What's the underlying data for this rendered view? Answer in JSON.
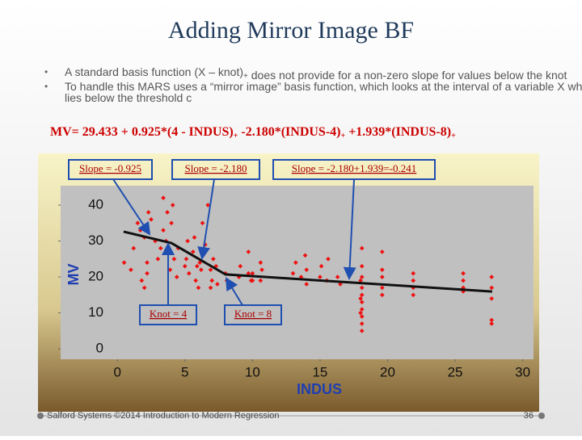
{
  "slide": {
    "title": "Adding Mirror Image BF",
    "bullets": [
      [
        "A standard basis function (X – knot)",
        "+",
        " does not provide for a non-zero slope for values below the knot"
      ],
      [
        "To handle this MARS uses a “mirror image” basis function, which looks at the interval of a variable X which lies below the threshold c"
      ]
    ],
    "formula": [
      "MV= 29.433 + 0.925*(4 - INDUS)",
      "+",
      " -2.180*(INDUS-4)",
      "+",
      " +1.939*(INDUS-8)",
      "+"
    ],
    "footer": "Salford Systems ©2014 Introduction to Modern Regression",
    "page": "36"
  },
  "chart_data": {
    "type": "scatter",
    "xlabel": "INDUS",
    "ylabel": "MV",
    "xlim": [
      -4.2,
      30.8
    ],
    "ylim": [
      -2.9,
      45.4
    ],
    "xticks": [
      0,
      5,
      10,
      15,
      20,
      25,
      30
    ],
    "yticks": [
      0,
      10,
      20,
      30,
      40
    ],
    "annotations": [
      "Slope = -0.925",
      "Slope = -2.180",
      "Slope = -2.180+1.939=-0.241",
      "Knot = 4",
      "Knot = 8"
    ],
    "series": [
      {
        "type": "scatter",
        "color": "#ee1111",
        "x": [
          0.5,
          1,
          1.2,
          1.5,
          1.7,
          2,
          2.2,
          2.3,
          2.5,
          2.8,
          3,
          3.2,
          3.4,
          1.8,
          2,
          2.2,
          3.6,
          3.8,
          3.9,
          4,
          4.1,
          4.2,
          3.4,
          3.7,
          4.5,
          4.4,
          5,
          5.2,
          5.1,
          5.3,
          5.6,
          5.7,
          5.8,
          5.9,
          6,
          6.1,
          6.2,
          6.3,
          6.5,
          6.9,
          7,
          7.1,
          7.4,
          7.3,
          6.7,
          6.9,
          8,
          8.1,
          8.5,
          9,
          9.1,
          9.7,
          9.9,
          9.7,
          10,
          10,
          10.6,
          10.7,
          10.6,
          13,
          13.2,
          13.6,
          13.9,
          14,
          14,
          15,
          15.1,
          15.5,
          15.6,
          16.5,
          16.3,
          18.1,
          18.1,
          18.1,
          18.1,
          18.1,
          18.1,
          18.1,
          18.1,
          18.1,
          18.1,
          18,
          18,
          18,
          19.6,
          19.6,
          19.6,
          19.6,
          19.6,
          21.9,
          21.9,
          21.9,
          21.9,
          25.6,
          25.6,
          25.6,
          25.6,
          27.7,
          27.7,
          27.7,
          27.7,
          27.7
        ],
        "values": [
          24,
          22,
          28,
          35,
          33,
          31,
          24,
          38,
          36,
          30,
          25,
          28,
          33,
          19,
          17,
          21,
          30,
          27,
          22,
          35,
          40,
          25,
          42,
          38,
          28,
          20,
          23,
          30,
          25,
          21,
          27,
          31,
          19,
          23,
          17,
          24,
          22,
          35,
          29,
          22,
          19,
          25,
          18,
          23,
          40,
          17,
          21,
          19,
          18,
          20,
          23,
          27,
          19,
          21,
          21,
          19,
          24,
          22,
          19,
          21,
          24,
          20,
          26,
          22,
          18,
          20,
          23,
          19,
          25,
          18,
          20,
          28,
          23,
          20,
          17,
          15,
          13,
          11,
          9,
          7,
          5,
          19,
          14,
          10,
          27,
          22,
          20,
          17,
          15,
          21,
          19,
          17,
          15,
          21,
          19,
          17,
          16,
          20,
          17,
          14,
          8,
          7
        ]
      },
      {
        "type": "line",
        "color": "#111111",
        "x": [
          0.46,
          4,
          8,
          27.74
        ],
        "values": [
          32.6,
          29.43,
          20.71,
          15.95
        ]
      }
    ]
  }
}
